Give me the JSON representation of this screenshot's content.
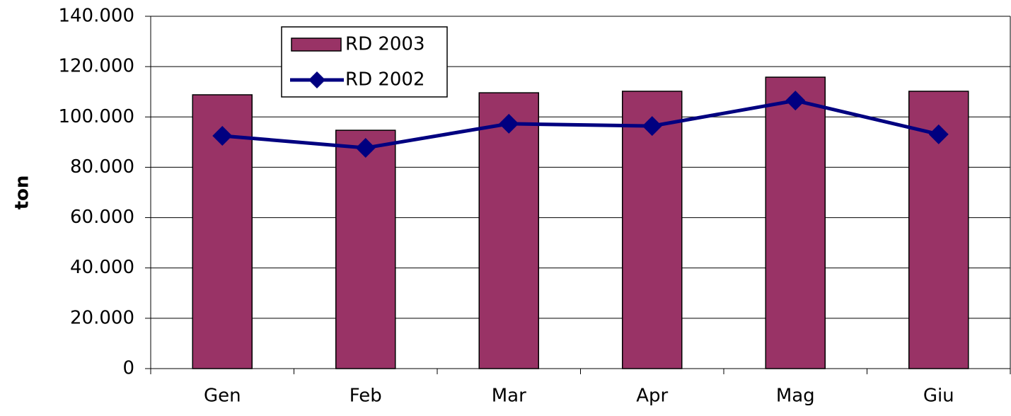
{
  "chart_data": {
    "type": "bar",
    "y_label": "ton",
    "categories": [
      "Gen",
      "Feb",
      "Mar",
      "Apr",
      "Mag",
      "Giu"
    ],
    "series": [
      {
        "name": "RD 2003",
        "type": "bar",
        "color": "#993366",
        "values": [
          108800,
          94700,
          109600,
          110200,
          115800,
          110200
        ]
      },
      {
        "name": "RD 2002",
        "type": "line",
        "color": "#000080",
        "values": [
          92500,
          87700,
          97300,
          96400,
          106500,
          93100
        ]
      }
    ],
    "ylim": [
      0,
      140000
    ],
    "yticks": [
      0,
      {
        "value": 20000,
        "label": "20.000"
      },
      {
        "value": 40000,
        "label": "40.000"
      },
      {
        "value": 60000,
        "label": "60.000"
      },
      {
        "value": 80000,
        "label": "80.000"
      },
      {
        "value": 100000,
        "label": "100.000"
      },
      {
        "value": 120000,
        "label": "120.000"
      },
      {
        "value": 140000,
        "label": "140.000"
      }
    ],
    "grid": true,
    "legend": "top-left"
  }
}
